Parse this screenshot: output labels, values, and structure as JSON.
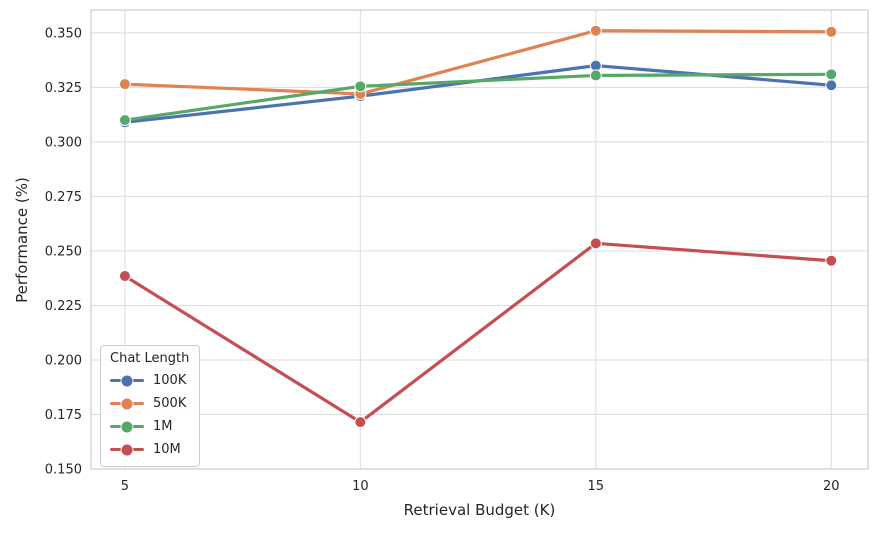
{
  "chart_data": {
    "type": "line",
    "title": "",
    "xlabel": "Retrieval Budget (K)",
    "ylabel": "Performance (%)",
    "x": [
      5,
      10,
      15,
      20
    ],
    "x_ticks": [
      "5",
      "10",
      "15",
      "20"
    ],
    "y_ticks": [
      "0.150",
      "0.175",
      "0.200",
      "0.225",
      "0.250",
      "0.275",
      "0.300",
      "0.325",
      "0.350"
    ],
    "xlim": [
      4.28,
      20.78
    ],
    "ylim": [
      0.15,
      0.3605
    ],
    "grid": true,
    "legend": {
      "title": "Chat Length",
      "position": "lower left"
    },
    "series": [
      {
        "name": "100K",
        "color": "#4C72B0",
        "values": [
          0.309,
          0.321,
          0.335,
          0.326
        ]
      },
      {
        "name": "500K",
        "color": "#DD8452",
        "values": [
          0.3265,
          0.322,
          0.351,
          0.3505
        ]
      },
      {
        "name": "1M",
        "color": "#55A868",
        "values": [
          0.31,
          0.3255,
          0.3305,
          0.331
        ]
      },
      {
        "name": "10M",
        "color": "#C44E52",
        "values": [
          0.2385,
          0.1715,
          0.2535,
          0.2455
        ]
      }
    ],
    "colors": {
      "background": "#ffffff",
      "grid": "#dcdcdc",
      "spine": "#cccccc",
      "text": "#262626"
    }
  }
}
